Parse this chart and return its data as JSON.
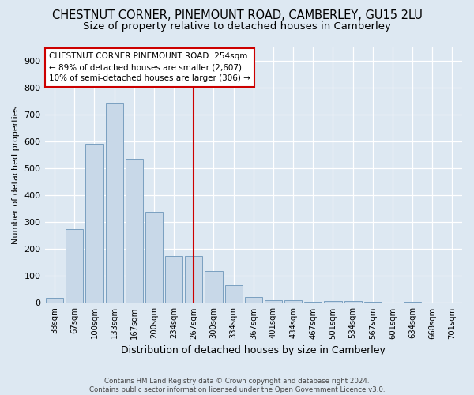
{
  "title_line1": "CHESTNUT CORNER, PINEMOUNT ROAD, CAMBERLEY, GU15 2LU",
  "title_line2": "Size of property relative to detached houses in Camberley",
  "xlabel": "Distribution of detached houses by size in Camberley",
  "ylabel": "Number of detached properties",
  "categories": [
    "33sqm",
    "67sqm",
    "100sqm",
    "133sqm",
    "167sqm",
    "200sqm",
    "234sqm",
    "267sqm",
    "300sqm",
    "334sqm",
    "367sqm",
    "401sqm",
    "434sqm",
    "467sqm",
    "501sqm",
    "534sqm",
    "567sqm",
    "601sqm",
    "634sqm",
    "668sqm",
    "701sqm"
  ],
  "values": [
    18,
    275,
    593,
    742,
    535,
    338,
    175,
    175,
    118,
    67,
    22,
    10,
    10,
    5,
    8,
    6,
    5,
    0,
    5,
    0,
    0
  ],
  "bar_color": "#c8d8e8",
  "bar_edge_color": "#7aa0c0",
  "vline_x_index": 7,
  "vline_color": "#cc0000",
  "annotation_line1": "CHESTNUT CORNER PINEMOUNT ROAD: 254sqm",
  "annotation_line2": "← 89% of detached houses are smaller (2,607)",
  "annotation_line3": "10% of semi-detached houses are larger (306) →",
  "annotation_box_color": "#ffffff",
  "annotation_box_edge": "#cc0000",
  "ylim_max": 950,
  "yticks": [
    0,
    100,
    200,
    300,
    400,
    500,
    600,
    700,
    800,
    900
  ],
  "footer_line1": "Contains HM Land Registry data © Crown copyright and database right 2024.",
  "footer_line2": "Contains public sector information licensed under the Open Government Licence v3.0.",
  "bg_color": "#dde8f2",
  "grid_color": "#ffffff",
  "title_fontsize": 10.5,
  "subtitle_fontsize": 9.5,
  "ylabel_fontsize": 8,
  "xlabel_fontsize": 9
}
